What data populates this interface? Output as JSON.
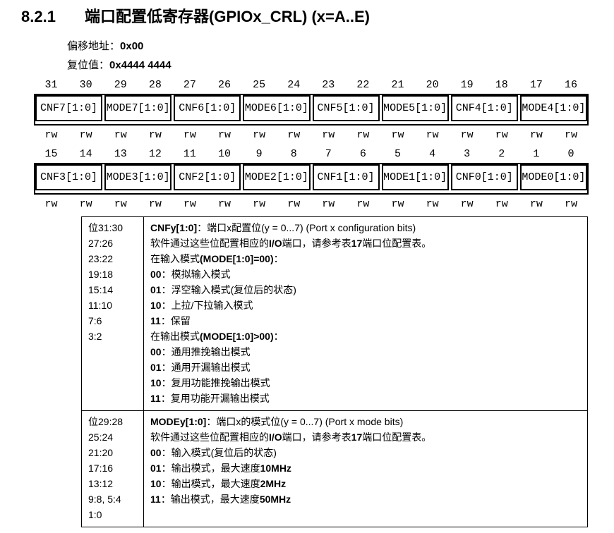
{
  "page": {
    "background": "#ffffff",
    "text_color": "#000000",
    "border_color": "#000000"
  },
  "heading": {
    "number": "8.2.1",
    "title": "端口配置低寄存器(GPIOx_CRL) (x=A..E)"
  },
  "meta": {
    "offset_label": "偏移地址：",
    "offset_value": "0x00",
    "reset_label": "复位值：",
    "reset_value": "0x4444 4444"
  },
  "register_diagram": {
    "rows": [
      {
        "bits": [
          "31",
          "30",
          "29",
          "28",
          "27",
          "26",
          "25",
          "24",
          "23",
          "22",
          "21",
          "20",
          "19",
          "18",
          "17",
          "16"
        ],
        "fields": [
          "CNF7[1:0]",
          "MODE7[1:0]",
          "CNF6[1:0]",
          "MODE6[1:0]",
          "CNF5[1:0]",
          "MODE5[1:0]",
          "CNF4[1:0]",
          "MODE4[1:0]"
        ],
        "access": [
          "rw",
          "rw",
          "rw",
          "rw",
          "rw",
          "rw",
          "rw",
          "rw",
          "rw",
          "rw",
          "rw",
          "rw",
          "rw",
          "rw",
          "rw",
          "rw"
        ]
      },
      {
        "bits": [
          "15",
          "14",
          "13",
          "12",
          "11",
          "10",
          "9",
          "8",
          "7",
          "6",
          "5",
          "4",
          "3",
          "2",
          "1",
          "0"
        ],
        "fields": [
          "CNF3[1:0]",
          "MODE3[1:0]",
          "CNF2[1:0]",
          "MODE2[1:0]",
          "CNF1[1:0]",
          "MODE1[1:0]",
          "CNF0[1:0]",
          "MODE0[1:0]"
        ],
        "access": [
          "rw",
          "rw",
          "rw",
          "rw",
          "rw",
          "rw",
          "rw",
          "rw",
          "rw",
          "rw",
          "rw",
          "rw",
          "rw",
          "rw",
          "rw",
          "rw"
        ]
      }
    ]
  },
  "description_table": {
    "rows": [
      {
        "bit_lines": [
          "位31:30",
          "27:26",
          "23:22",
          "19:18",
          "15:14",
          "11:10",
          "7:6",
          "3:2"
        ],
        "desc_lines": [
          [
            {
              "t": "CNFy[1:0]",
              "b": true
            },
            {
              "t": "：端口x配置位(y = 0...7) (Port x configuration bits)"
            }
          ],
          [
            {
              "t": "软件通过这些位配置相应的"
            },
            {
              "t": "I/O",
              "b": true
            },
            {
              "t": "端口，请参考表"
            },
            {
              "t": "17",
              "b": true
            },
            {
              "t": "端口位配置表。"
            }
          ],
          [
            {
              "t": "在输入模式"
            },
            {
              "t": "(MODE[1:0]=00)",
              "b": true
            },
            {
              "t": "："
            }
          ],
          [
            {
              "t": "00",
              "b": true
            },
            {
              "t": "：模拟输入模式"
            }
          ],
          [
            {
              "t": "01",
              "b": true
            },
            {
              "t": "：浮空输入模式(复位后的状态)"
            }
          ],
          [
            {
              "t": "10",
              "b": true
            },
            {
              "t": "：上拉/下拉输入模式"
            }
          ],
          [
            {
              "t": "11",
              "b": true
            },
            {
              "t": "：保留"
            }
          ],
          [
            {
              "t": "在输出模式"
            },
            {
              "t": "(MODE[1:0]>00)",
              "b": true
            },
            {
              "t": "："
            }
          ],
          [
            {
              "t": "00",
              "b": true
            },
            {
              "t": "：通用推挽输出模式"
            }
          ],
          [
            {
              "t": "01",
              "b": true
            },
            {
              "t": "：通用开漏输出模式"
            }
          ],
          [
            {
              "t": "10",
              "b": true
            },
            {
              "t": "：复用功能推挽输出模式"
            }
          ],
          [
            {
              "t": "11",
              "b": true
            },
            {
              "t": "：复用功能开漏输出模式"
            }
          ]
        ]
      },
      {
        "bit_lines": [
          "位29:28",
          "25:24",
          "21:20",
          "17:16",
          "13:12",
          "9:8, 5:4",
          "1:0"
        ],
        "desc_lines": [
          [
            {
              "t": "MODEy[1:0]",
              "b": true
            },
            {
              "t": "：端口x的模式位(y = 0...7) (Port x mode bits)"
            }
          ],
          [
            {
              "t": "软件通过这些位配置相应的"
            },
            {
              "t": "I/O",
              "b": true
            },
            {
              "t": "端口，请参考表"
            },
            {
              "t": "17",
              "b": true
            },
            {
              "t": "端口位配置表。"
            }
          ],
          [
            {
              "t": "00",
              "b": true
            },
            {
              "t": "：输入模式(复位后的状态)"
            }
          ],
          [
            {
              "t": "01",
              "b": true
            },
            {
              "t": "：输出模式，最大速度"
            },
            {
              "t": "10MHz",
              "b": true
            }
          ],
          [
            {
              "t": "10",
              "b": true
            },
            {
              "t": "：输出模式，最大速度"
            },
            {
              "t": "2MHz",
              "b": true
            }
          ],
          [
            {
              "t": "11",
              "b": true
            },
            {
              "t": "：输出模式，最大速度"
            },
            {
              "t": "50MHz",
              "b": true
            }
          ]
        ]
      }
    ]
  }
}
